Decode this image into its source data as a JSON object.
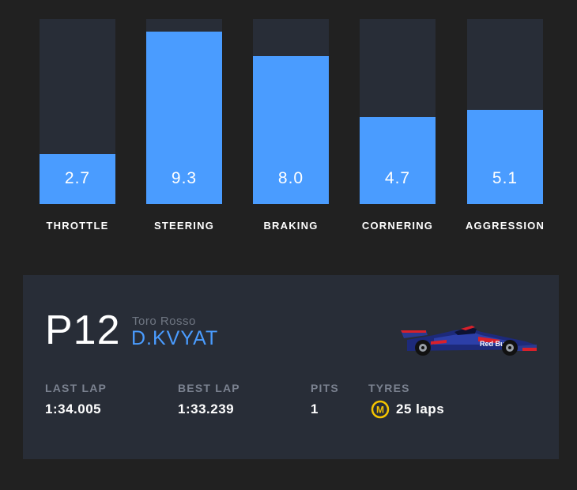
{
  "stats": [
    {
      "label": "THROTTLE",
      "value": "2.7",
      "fill": 0.27
    },
    {
      "label": "STEERING",
      "value": "9.3",
      "fill": 0.93
    },
    {
      "label": "BRAKING",
      "value": "8.0",
      "fill": 0.8
    },
    {
      "label": "CORNERING",
      "value": "4.7",
      "fill": 0.47
    },
    {
      "label": "AGGRESSION",
      "value": "5.1",
      "fill": 0.51
    }
  ],
  "driver_card": {
    "position": "P12",
    "team": "Toro Rosso",
    "driver": "D.KVYAT",
    "last_lap_label": "LAST LAP",
    "last_lap_value": "1:34.005",
    "best_lap_label": "BEST LAP",
    "best_lap_value": "1:33.239",
    "pits_label": "PITS",
    "pits_value": "1",
    "tyres_label": "TYRES",
    "tyres_compound": "M",
    "tyres_value": "25 laps",
    "car_logo_text": "Red Bull"
  },
  "colors": {
    "background": "#212121",
    "panel": "#282d37",
    "accent_blue": "#4a9cff",
    "tyre_medium": "#f5c400"
  }
}
